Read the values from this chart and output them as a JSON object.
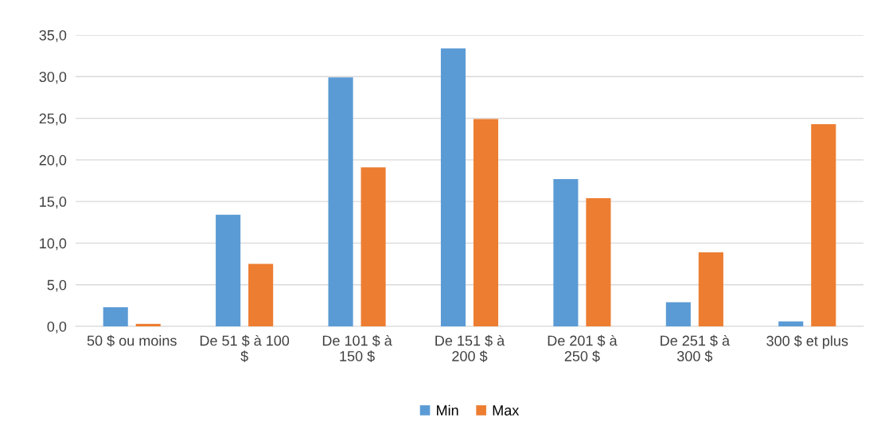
{
  "chart_data": {
    "type": "bar",
    "categories": [
      "50 $ ou moins",
      "De 51 $ à 100\n$",
      "De 101 $ à\n150 $",
      "De 151 $ à\n200 $",
      "De 201 $ à\n250 $",
      "De 251 $ à\n300 $",
      "300 $ et plus"
    ],
    "series": [
      {
        "name": "Min",
        "color": "#5b9bd5",
        "values": [
          2.3,
          13.4,
          29.9,
          33.4,
          17.7,
          2.9,
          0.6
        ]
      },
      {
        "name": "Max",
        "color": "#ed7d31",
        "values": [
          0.3,
          7.5,
          19.1,
          24.9,
          15.4,
          8.9,
          24.3
        ]
      }
    ],
    "ylim": [
      0,
      35
    ],
    "yticks": [
      {
        "value": 0,
        "label": "0,0"
      },
      {
        "value": 5,
        "label": "5,0"
      },
      {
        "value": 10,
        "label": "10,0"
      },
      {
        "value": 15,
        "label": "15,0"
      },
      {
        "value": 20,
        "label": "20,0"
      },
      {
        "value": 25,
        "label": "25,0"
      },
      {
        "value": 30,
        "label": "30,0"
      },
      {
        "value": 35,
        "label": "35,0"
      }
    ],
    "grid": "y",
    "legend": "bottom"
  }
}
